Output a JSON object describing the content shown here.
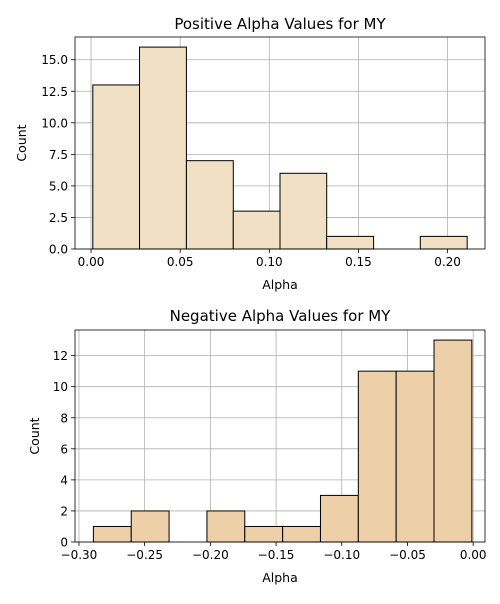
{
  "chart_data": [
    {
      "type": "bar",
      "title": "Positive Alpha Values for MY",
      "xlabel": "Alpha",
      "ylabel": "Count",
      "bar_color": "#f2e0c5",
      "grid": true,
      "xlim": [
        -0.009,
        0.221
      ],
      "ylim": [
        0,
        16.8
      ],
      "xticks": [
        0.0,
        0.05,
        0.1,
        0.15,
        0.2
      ],
      "xtick_labels": [
        "0.00",
        "0.05",
        "0.10",
        "0.15",
        "0.20"
      ],
      "yticks": [
        0,
        2.5,
        5,
        7.5,
        10,
        12.5,
        15
      ],
      "ytick_labels": [
        "0.0",
        "2.5",
        "5.0",
        "7.5",
        "10.0",
        "12.5",
        "15.0"
      ],
      "bin_edges": [
        0.001,
        0.0272,
        0.0535,
        0.0798,
        0.106,
        0.1322,
        0.1585,
        0.1847,
        0.211
      ],
      "values": [
        13,
        16,
        7,
        3,
        6,
        1,
        0,
        1
      ]
    },
    {
      "type": "bar",
      "title": "Negative Alpha Values for MY",
      "xlabel": "Alpha",
      "ylabel": "Count",
      "bar_color": "#edd0a8",
      "grid": true,
      "xlim": [
        -0.303,
        0.009
      ],
      "ylim": [
        0,
        13.65
      ],
      "xticks": [
        -0.3,
        -0.25,
        -0.2,
        -0.15,
        -0.1,
        -0.05,
        0.0
      ],
      "xtick_labels": [
        "−0.30",
        "−0.25",
        "−0.20",
        "−0.15",
        "−0.10",
        "−0.05",
        "0.00"
      ],
      "yticks": [
        0,
        2,
        4,
        6,
        8,
        10,
        12
      ],
      "ytick_labels": [
        "0",
        "2",
        "4",
        "6",
        "8",
        "10",
        "12"
      ],
      "bin_edges": [
        -0.289,
        -0.2602,
        -0.2314,
        -0.2026,
        -0.1738,
        -0.145,
        -0.1162,
        -0.0874,
        -0.0586,
        -0.0298,
        -0.001
      ],
      "values": [
        1,
        2,
        0,
        2,
        1,
        1,
        3,
        11,
        11,
        13
      ]
    }
  ]
}
